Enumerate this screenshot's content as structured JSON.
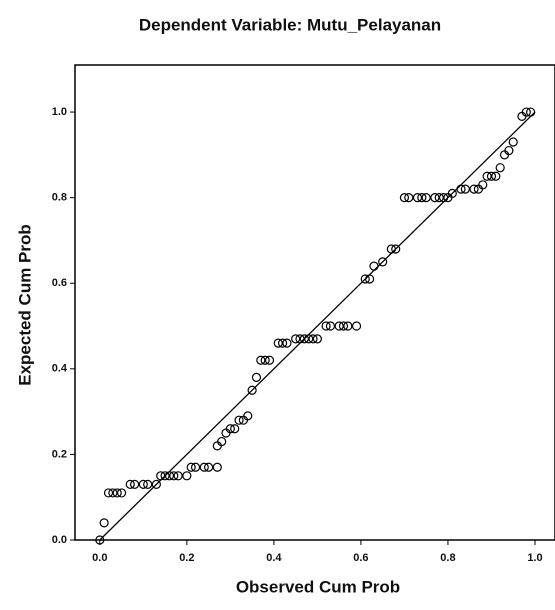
{
  "chart_data": {
    "type": "scatter",
    "title": "Dependent Variable: Mutu_Pelayanan",
    "xlabel": "Observed Cum Prob",
    "ylabel": "Expected Cum Prob",
    "xlim": [
      -0.057,
      1.046
    ],
    "ylim": [
      0,
      1.11
    ],
    "xticks": [
      {
        "value": 0,
        "label": "0.0"
      },
      {
        "value": 0.2,
        "label": "0.2"
      },
      {
        "value": 0.4,
        "label": "0.4"
      },
      {
        "value": 0.6,
        "label": "0.6"
      },
      {
        "value": 0.8,
        "label": "0.8"
      },
      {
        "value": 1,
        "label": "1.0"
      }
    ],
    "yticks": [
      {
        "value": 0,
        "label": "0.0"
      },
      {
        "value": 0.2,
        "label": "0.2"
      },
      {
        "value": 0.4,
        "label": "0.4"
      },
      {
        "value": 0.6,
        "label": "0.6"
      },
      {
        "value": 0.8,
        "label": "0.8"
      },
      {
        "value": 1,
        "label": "1.0"
      }
    ],
    "color": "#000000",
    "x": [
      0.0,
      0.01,
      0.02,
      0.03,
      0.04,
      0.05,
      0.07,
      0.08,
      0.1,
      0.11,
      0.13,
      0.14,
      0.15,
      0.16,
      0.17,
      0.18,
      0.2,
      0.21,
      0.22,
      0.24,
      0.25,
      0.27,
      0.27,
      0.28,
      0.29,
      0.3,
      0.31,
      0.32,
      0.33,
      0.34,
      0.35,
      0.36,
      0.37,
      0.38,
      0.39,
      0.41,
      0.42,
      0.43,
      0.45,
      0.46,
      0.47,
      0.48,
      0.49,
      0.5,
      0.52,
      0.53,
      0.55,
      0.56,
      0.57,
      0.59,
      0.61,
      0.62,
      0.63,
      0.65,
      0.67,
      0.68,
      0.7,
      0.71,
      0.73,
      0.74,
      0.75,
      0.77,
      0.78,
      0.79,
      0.8,
      0.81,
      0.83,
      0.84,
      0.86,
      0.87,
      0.88,
      0.89,
      0.9,
      0.91,
      0.92,
      0.93,
      0.94,
      0.95,
      0.97,
      0.98,
      0.99
    ],
    "values": [
      0.0,
      0.04,
      0.11,
      0.11,
      0.11,
      0.11,
      0.13,
      0.13,
      0.13,
      0.13,
      0.13,
      0.15,
      0.15,
      0.15,
      0.15,
      0.15,
      0.15,
      0.17,
      0.17,
      0.17,
      0.17,
      0.17,
      0.22,
      0.23,
      0.25,
      0.26,
      0.26,
      0.28,
      0.28,
      0.29,
      0.35,
      0.38,
      0.42,
      0.42,
      0.42,
      0.46,
      0.46,
      0.46,
      0.47,
      0.47,
      0.47,
      0.47,
      0.47,
      0.47,
      0.5,
      0.5,
      0.5,
      0.5,
      0.5,
      0.5,
      0.61,
      0.61,
      0.64,
      0.65,
      0.68,
      0.68,
      0.8,
      0.8,
      0.8,
      0.8,
      0.8,
      0.8,
      0.8,
      0.8,
      0.8,
      0.81,
      0.82,
      0.82,
      0.82,
      0.82,
      0.83,
      0.85,
      0.85,
      0.85,
      0.87,
      0.9,
      0.91,
      0.93,
      0.99,
      1.0,
      1.0
    ]
  }
}
